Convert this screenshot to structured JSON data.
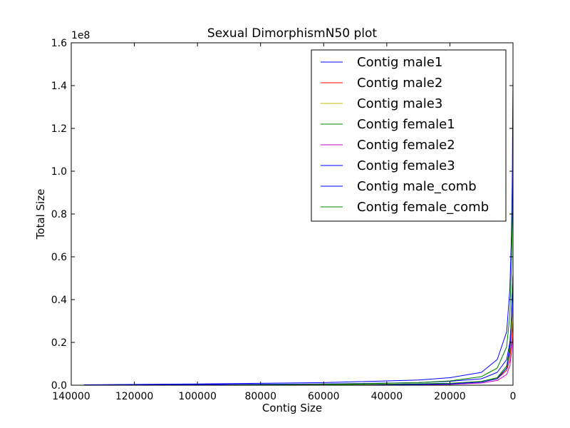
{
  "chart_data": {
    "type": "line",
    "title": "Sexual DimorphismN50 plot",
    "xlabel": "Contig Size",
    "ylabel": "Total Size",
    "y_multiplier_label": "1e8",
    "xlim": [
      140000,
      0
    ],
    "ylim": [
      0,
      1.6
    ],
    "x_inverted": true,
    "grid": false,
    "legend_position": "top-right",
    "xticks": [
      140000,
      120000,
      100000,
      80000,
      60000,
      40000,
      20000,
      0
    ],
    "xtick_labels": [
      "140000",
      "120000",
      "100000",
      "80000",
      "60000",
      "40000",
      "20000",
      "0"
    ],
    "yticks": [
      0.0,
      0.2,
      0.4,
      0.6,
      0.8,
      1.0,
      1.2,
      1.4,
      1.6
    ],
    "ytick_labels": [
      "0.0",
      "0.2",
      "0.4",
      "0.6",
      "0.8",
      "1.0",
      "1.2",
      "1.4",
      "1.6"
    ],
    "series": [
      {
        "name": "Contig male1",
        "color": "#0000ff",
        "x": [
          136000,
          100000,
          60000,
          30000,
          20000,
          10000,
          5000,
          2000,
          1000,
          500,
          200,
          0
        ],
        "y": [
          0.001,
          0.003,
          0.006,
          0.012,
          0.018,
          0.03,
          0.06,
          0.12,
          0.2,
          0.3,
          0.45,
          0.52
        ]
      },
      {
        "name": "Contig male2",
        "color": "#ff0000",
        "x": [
          70000,
          40000,
          20000,
          10000,
          5000,
          2000,
          1000,
          500,
          200,
          0
        ],
        "y": [
          0.001,
          0.004,
          0.008,
          0.015,
          0.03,
          0.07,
          0.12,
          0.2,
          0.26,
          0.3
        ]
      },
      {
        "name": "Contig male3",
        "color": "#bfbf00",
        "x": [
          65000,
          40000,
          20000,
          10000,
          5000,
          2000,
          1000,
          500,
          200,
          0
        ],
        "y": [
          0.001,
          0.004,
          0.008,
          0.016,
          0.032,
          0.08,
          0.15,
          0.25,
          0.33,
          0.38
        ]
      },
      {
        "name": "Contig female1",
        "color": "#008000",
        "x": [
          60000,
          40000,
          20000,
          10000,
          5000,
          2000,
          1000,
          500,
          200,
          0
        ],
        "y": [
          0.001,
          0.004,
          0.009,
          0.018,
          0.035,
          0.09,
          0.18,
          0.32,
          0.45,
          0.52
        ]
      },
      {
        "name": "Contig female2",
        "color": "#bf00bf",
        "x": [
          40000,
          20000,
          10000,
          5000,
          2000,
          1000,
          500,
          200,
          0
        ],
        "y": [
          0.001,
          0.004,
          0.01,
          0.022,
          0.05,
          0.09,
          0.15,
          0.2,
          0.23
        ]
      },
      {
        "name": "Contig female3",
        "color": "#0000ff",
        "x": [
          45000,
          20000,
          10000,
          5000,
          2000,
          1000,
          500,
          200,
          0
        ],
        "y": [
          0.001,
          0.006,
          0.014,
          0.03,
          0.08,
          0.16,
          0.3,
          0.42,
          0.48
        ]
      },
      {
        "name": "Contig male_comb",
        "color": "#0000ff",
        "x": [
          136000,
          100000,
          60000,
          30000,
          20000,
          10000,
          5000,
          2000,
          1000,
          500,
          200,
          100,
          0
        ],
        "y": [
          0.002,
          0.006,
          0.012,
          0.024,
          0.035,
          0.06,
          0.12,
          0.25,
          0.45,
          0.7,
          1.0,
          1.25,
          1.43
        ]
      },
      {
        "name": "Contig female_comb",
        "color": "#008000",
        "x": [
          90000,
          60000,
          30000,
          20000,
          10000,
          5000,
          2000,
          1000,
          500,
          200,
          100,
          0
        ],
        "y": [
          0.001,
          0.004,
          0.012,
          0.02,
          0.04,
          0.08,
          0.18,
          0.33,
          0.55,
          0.8,
          1.0,
          1.13
        ]
      }
    ]
  }
}
